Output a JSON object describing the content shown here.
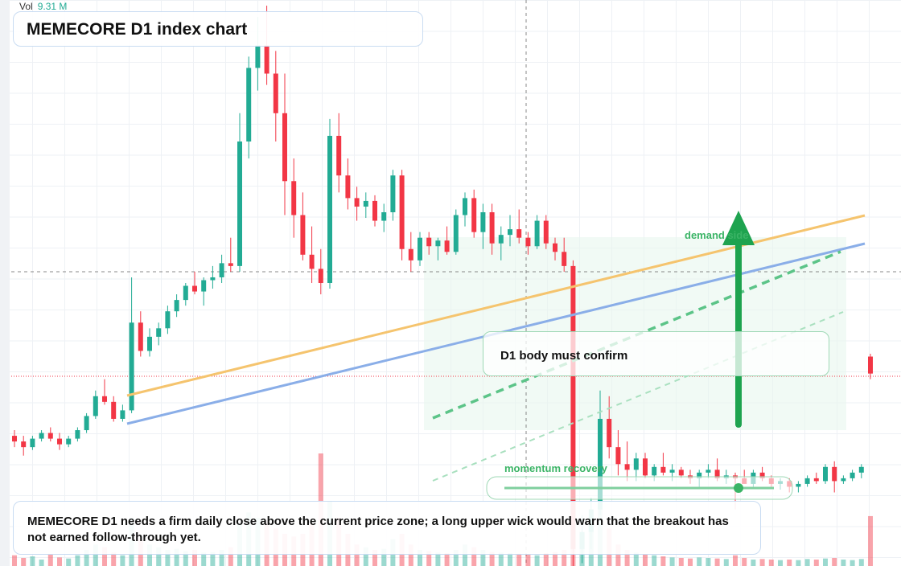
{
  "chart_data": {
    "type": "candlestick",
    "title": "MEMECORE D1 index chart",
    "open": [
      23,
      22,
      21,
      22.5,
      23.5,
      22.5,
      21.5,
      22.5,
      24,
      26.5,
      30,
      29,
      26,
      27.5,
      43,
      38,
      40.5,
      42,
      45,
      47,
      49.5,
      48.5,
      50.5,
      51,
      53.5,
      53,
      75,
      88,
      92,
      87,
      80,
      68,
      62,
      55,
      52.5,
      50,
      76,
      69,
      65,
      63.5,
      64.5,
      61,
      62.5,
      69,
      56,
      54,
      58,
      56.5,
      57.5,
      55.5,
      62,
      65,
      59,
      62.5,
      57,
      58.5,
      59.5,
      58,
      56.5,
      61,
      57,
      55.5,
      53,
      3,
      6,
      10,
      26,
      21,
      18,
      17,
      19,
      16,
      17.5,
      16.5,
      17,
      16,
      15.5,
      16.5,
      17,
      15.5,
      16,
      15.5,
      14.5,
      16.5,
      15.5,
      14.5,
      15,
      14,
      14.5,
      15.5,
      15,
      17.5,
      15,
      15.5,
      16.5,
      37
    ],
    "high": [
      24,
      23,
      23,
      24,
      24.5,
      23.5,
      23,
      24.5,
      27,
      31,
      33,
      30,
      28.5,
      51,
      45,
      42,
      43,
      46,
      48,
      50,
      52,
      51,
      53,
      55,
      58,
      80,
      90,
      97,
      99,
      91,
      87,
      72,
      66,
      60,
      56,
      79,
      80,
      72,
      67,
      66,
      65.5,
      64,
      70,
      70,
      59,
      59,
      59,
      58,
      60,
      63,
      66,
      66.5,
      64,
      64,
      60,
      62,
      63,
      59,
      62,
      62,
      58,
      58,
      54,
      9,
      12,
      31,
      30,
      24,
      22,
      20,
      20,
      18,
      20,
      18,
      17.5,
      17,
      17,
      18,
      19,
      17,
      16.5,
      17,
      17,
      17.5,
      16,
      15.5,
      15.5,
      15,
      16,
      16.5,
      18,
      18.5,
      16,
      17,
      18,
      37.5
    ],
    "low": [
      21,
      19.5,
      20.5,
      22,
      22,
      20.5,
      21,
      22,
      23.5,
      26,
      28.5,
      25.5,
      25.5,
      27,
      37,
      37,
      39,
      41,
      44,
      46,
      48,
      46,
      49,
      50,
      52,
      52,
      72,
      84,
      85,
      75,
      62,
      58,
      54,
      50,
      48,
      49,
      66,
      63,
      61,
      61.5,
      60,
      59,
      61,
      54,
      52,
      53,
      55,
      54,
      55,
      55,
      60,
      58,
      56,
      55,
      54,
      56.5,
      57,
      55,
      56,
      56,
      54,
      52,
      0,
      0.5,
      3,
      9,
      19,
      16,
      15,
      15,
      15.5,
      15,
      16,
      15,
      15.5,
      14.5,
      14,
      15.5,
      15,
      14.5,
      10,
      14.5,
      14,
      15,
      14,
      13.5,
      13,
      13,
      14,
      14.5,
      14.5,
      13,
      14.5,
      15,
      15.5,
      33
    ],
    "close": [
      22,
      21,
      22.5,
      23.5,
      22.5,
      21.5,
      22.5,
      24,
      26.5,
      30,
      29,
      26,
      27.5,
      43,
      38,
      40.5,
      42,
      45,
      47,
      49.5,
      48.5,
      50.5,
      51,
      53.5,
      53,
      75,
      88,
      92,
      87,
      80,
      68,
      62,
      55,
      52.5,
      50,
      76,
      69,
      65,
      63.5,
      64.5,
      61,
      62.5,
      69,
      56,
      54,
      58,
      56.5,
      57.5,
      55.5,
      62,
      65,
      59,
      62.5,
      57,
      58.5,
      59.5,
      58,
      56.5,
      61,
      57,
      55.5,
      53,
      3,
      6,
      10,
      26,
      21,
      18,
      17,
      19,
      16,
      17.5,
      16.5,
      17,
      16,
      15.5,
      16.5,
      17,
      15.5,
      16,
      15.5,
      14.5,
      16.5,
      15.5,
      14.5,
      15,
      14,
      14.5,
      15.5,
      15,
      17.5,
      15,
      15.5,
      16.5,
      17.5,
      34
    ],
    "volume": [
      2,
      1.5,
      1.8,
      1.2,
      2.2,
      1.6,
      1.4,
      2,
      3,
      4,
      3.5,
      2.5,
      2,
      9,
      5,
      4,
      3.5,
      3,
      3.2,
      2.8,
      3,
      2.5,
      2.6,
      3,
      3.5,
      8,
      10,
      9,
      8.5,
      7,
      6,
      5.5,
      6,
      8,
      21,
      12,
      9,
      6,
      4,
      3.5,
      3,
      3.2,
      5,
      6,
      4,
      3,
      2.8,
      2.5,
      2.4,
      3,
      4,
      3.5,
      3,
      2.6,
      2.5,
      2.4,
      2.3,
      2.2,
      2,
      2.4,
      2.6,
      3,
      12.6,
      6,
      8,
      15.6,
      7,
      4,
      3,
      2.5,
      2.2,
      2,
      1.8,
      1.6,
      1.5,
      1.4,
      1.6,
      1.5,
      1.4,
      1.3,
      2,
      1.5,
      1.2,
      1.3,
      1.2,
      1.1,
      1.2,
      1.1,
      1.3,
      1.2,
      1.4,
      1.5,
      1.2,
      1.1,
      1.3,
      9.31
    ],
    "ylim": [
      0,
      100
    ],
    "vlim": [
      0,
      30
    ],
    "up_color": "#22ab94",
    "down_color": "#f23645",
    "vol_label": "Vol",
    "vol_value": "9.31 M",
    "zone_label": "D1 body must confirm",
    "demand_label": "demand side",
    "momentum_label": "momentum recovery",
    "note": "MEMECORE D1 needs a firm daily close above the current price zone; a long upper wick would warn that the breakout has not earned follow-through yet."
  }
}
